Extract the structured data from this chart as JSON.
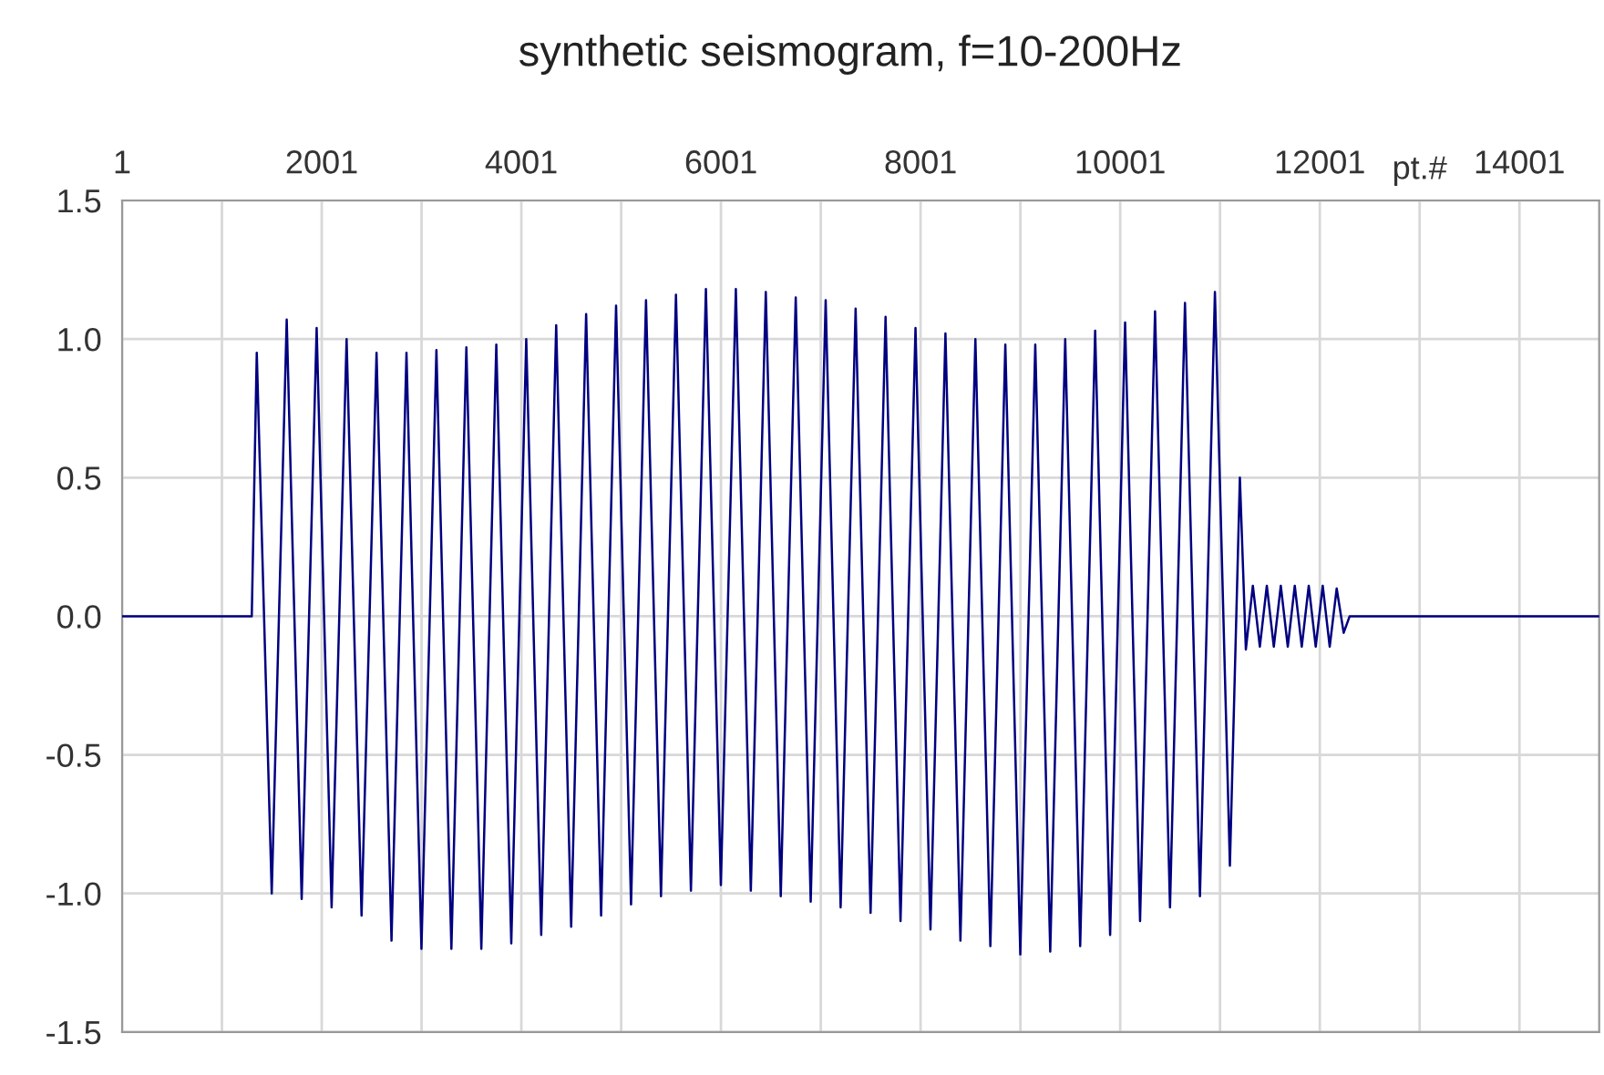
{
  "chart_data": {
    "type": "line",
    "title": "synthetic seismogram, f=10-200Hz",
    "xlabel": "pt.#",
    "x": [
      1,
      1300,
      1350,
      1500,
      1650,
      1800,
      1950,
      2100,
      2250,
      2400,
      2550,
      2700,
      2850,
      3000,
      3150,
      3300,
      3450,
      3600,
      3750,
      3900,
      4050,
      4200,
      4350,
      4500,
      4650,
      4800,
      4950,
      5100,
      5250,
      5400,
      5550,
      5700,
      5850,
      6000,
      6150,
      6300,
      6450,
      6600,
      6750,
      6900,
      7050,
      7200,
      7350,
      7500,
      7650,
      7800,
      7950,
      8100,
      8250,
      8400,
      8550,
      8700,
      8850,
      9000,
      9150,
      9300,
      9450,
      9600,
      9750,
      9900,
      10050,
      10200,
      10350,
      10500,
      10650,
      10800,
      10950,
      11100,
      11200,
      11260,
      11330,
      11400,
      11470,
      11540,
      11610,
      11680,
      11750,
      11820,
      11890,
      11960,
      12030,
      12100,
      12170,
      12240,
      12300,
      14800
    ],
    "series": [
      {
        "color": "#000080",
        "values": [
          0,
          0,
          0.95,
          -1.0,
          1.07,
          -1.02,
          1.04,
          -1.05,
          1.0,
          -1.08,
          0.95,
          -1.17,
          0.95,
          -1.2,
          0.96,
          -1.2,
          0.97,
          -1.2,
          0.98,
          -1.18,
          1.0,
          -1.15,
          1.05,
          -1.12,
          1.09,
          -1.08,
          1.12,
          -1.04,
          1.14,
          -1.01,
          1.16,
          -0.99,
          1.18,
          -0.97,
          1.18,
          -0.99,
          1.17,
          -1.01,
          1.15,
          -1.03,
          1.14,
          -1.05,
          1.11,
          -1.07,
          1.08,
          -1.1,
          1.04,
          -1.13,
          1.02,
          -1.17,
          1.0,
          -1.19,
          0.98,
          -1.22,
          0.98,
          -1.21,
          1.0,
          -1.19,
          1.03,
          -1.15,
          1.06,
          -1.1,
          1.1,
          -1.05,
          1.13,
          -1.01,
          1.17,
          -0.9,
          0.5,
          -0.12,
          0.11,
          -0.11,
          0.11,
          -0.11,
          0.11,
          -0.11,
          0.11,
          -0.11,
          0.11,
          -0.11,
          0.11,
          -0.11,
          0.1,
          -0.06,
          0,
          0
        ]
      }
    ],
    "xlim": [
      1,
      14800
    ],
    "xticks": [
      1,
      {
        "value": 1001,
        "label": null
      },
      2001,
      {
        "value": 3001,
        "label": null
      },
      4001,
      {
        "value": 5001,
        "label": null
      },
      6001,
      {
        "value": 7001,
        "label": null
      },
      8001,
      {
        "value": 9001,
        "label": null
      },
      10001,
      {
        "value": 11001,
        "label": null
      },
      12001,
      {
        "value": 13001,
        "label": null
      },
      14001
    ],
    "ylim": [
      -1.5,
      1.5
    ],
    "yticks": [
      {
        "value": -1.5,
        "label": "-1.5"
      },
      {
        "value": -1.0,
        "label": "-1.0"
      },
      {
        "value": -0.5,
        "label": "-0.5"
      },
      {
        "value": 0,
        "label": "0.0"
      },
      {
        "value": 0.5,
        "label": "0.5"
      },
      {
        "value": 1.0,
        "label": "1.0"
      },
      {
        "value": 1.5,
        "label": "1.5"
      }
    ],
    "grid": true,
    "line_style": "solid",
    "marker": "none"
  }
}
